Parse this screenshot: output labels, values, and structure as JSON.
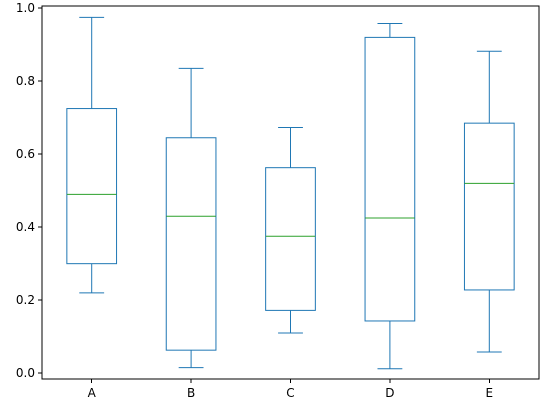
{
  "chart_data": {
    "type": "box",
    "title": "",
    "xlabel": "",
    "ylabel": "",
    "categories": [
      "A",
      "B",
      "C",
      "D",
      "E"
    ],
    "boxes": [
      {
        "category": "A",
        "whisker_low": 0.22,
        "q1": 0.3,
        "median": 0.49,
        "q3": 0.725,
        "whisker_high": 0.975
      },
      {
        "category": "B",
        "whisker_low": 0.015,
        "q1": 0.063,
        "median": 0.43,
        "q3": 0.645,
        "whisker_high": 0.835
      },
      {
        "category": "C",
        "whisker_low": 0.11,
        "q1": 0.172,
        "median": 0.375,
        "q3": 0.563,
        "whisker_high": 0.673
      },
      {
        "category": "D",
        "whisker_low": 0.012,
        "q1": 0.143,
        "median": 0.425,
        "q3": 0.92,
        "whisker_high": 0.958
      },
      {
        "category": "E",
        "whisker_low": 0.058,
        "q1": 0.228,
        "median": 0.52,
        "q3": 0.685,
        "whisker_high": 0.882
      }
    ],
    "ylim": [
      -0.016,
      1.006
    ],
    "yticks": [
      0.0,
      0.2,
      0.4,
      0.6,
      0.8,
      1.0
    ],
    "ytick_labels": [
      "0.0",
      "0.2",
      "0.4",
      "0.6",
      "0.8",
      "1.0"
    ],
    "grid": false,
    "colors": {
      "box": "#1f77b4",
      "median": "#2ca02c"
    }
  }
}
